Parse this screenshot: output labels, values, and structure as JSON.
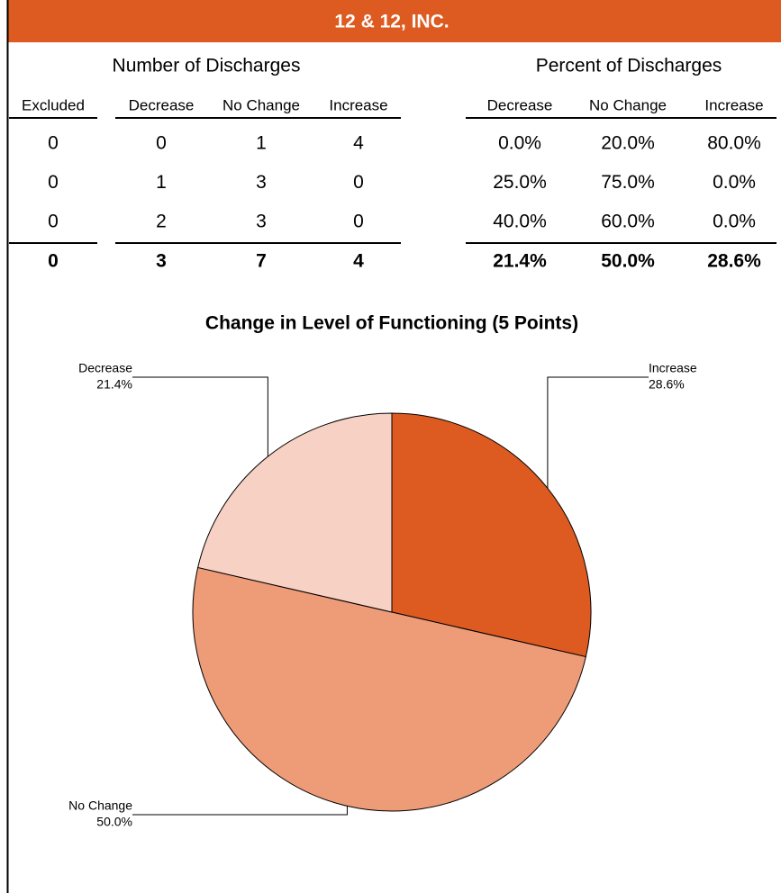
{
  "header": {
    "title": "12 & 12, INC."
  },
  "table": {
    "groups": [
      "Number of Discharges",
      "Percent of Discharges"
    ],
    "columns": [
      "Excluded",
      "Decrease",
      "No Change",
      "Increase",
      "Decrease",
      "No Change",
      "Increase"
    ],
    "rows": [
      [
        "0",
        "0",
        "1",
        "4",
        "0.0%",
        "20.0%",
        "80.0%"
      ],
      [
        "0",
        "1",
        "3",
        "0",
        "25.0%",
        "75.0%",
        "0.0%"
      ],
      [
        "0",
        "2",
        "3",
        "0",
        "40.0%",
        "60.0%",
        "0.0%"
      ]
    ],
    "total": [
      "0",
      "3",
      "7",
      "4",
      "21.4%",
      "50.0%",
      "28.6%"
    ]
  },
  "chart_data": {
    "type": "pie",
    "title": "Change in Level of Functioning (5 Points)",
    "categories": [
      "Increase",
      "No Change",
      "Decrease"
    ],
    "values": [
      28.6,
      50.0,
      21.4
    ],
    "value_labels": [
      "28.6%",
      "50.0%",
      "21.4%"
    ],
    "colors": [
      "#dd5a20",
      "#ee9b78",
      "#f6d1c4"
    ]
  }
}
